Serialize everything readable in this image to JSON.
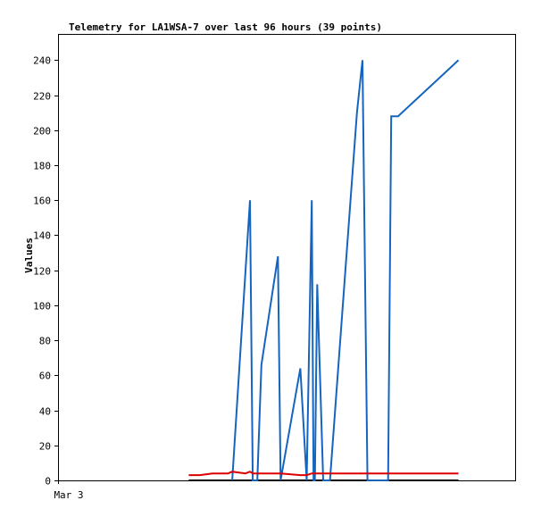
{
  "chart_data": {
    "type": "line",
    "title": "Telemetry for LA1WSA-7 over last 96 hours (39 points)",
    "xlabel": "",
    "ylabel": "Values",
    "x_tick_labels": [
      "Mar 3"
    ],
    "ylim": [
      0,
      255
    ],
    "y_ticks": [
      0,
      20,
      40,
      60,
      80,
      100,
      120,
      140,
      160,
      180,
      200,
      220,
      240
    ],
    "grid": false,
    "legend": "none",
    "series": [
      {
        "color": "#000000",
        "x": [
          0.286,
          0.876
        ],
        "y": [
          0,
          0
        ]
      },
      {
        "color": "#1565c0",
        "x": [
          0.381,
          0.42,
          0.426,
          0.436,
          0.445,
          0.481,
          0.487,
          0.53,
          0.544,
          0.555,
          0.559,
          0.562,
          0.567,
          0.58,
          0.584,
          0.595,
          0.654,
          0.666,
          0.677,
          0.722,
          0.729,
          0.744,
          0.876
        ],
        "y": [
          0,
          160,
          0,
          0,
          66,
          128,
          0,
          64,
          0,
          160,
          0,
          0,
          112,
          0,
          0,
          0,
          210,
          240,
          0,
          0,
          208,
          208,
          240
        ]
      },
      {
        "color": "#dd0000",
        "x": [
          0.286,
          0.31,
          0.338,
          0.372,
          0.381,
          0.41,
          0.42,
          0.426,
          0.436,
          0.487,
          0.53,
          0.544,
          0.555,
          0.876
        ],
        "y": [
          3,
          3,
          4,
          4,
          5,
          4,
          5,
          4,
          4,
          4,
          3,
          3,
          4,
          4
        ]
      }
    ]
  }
}
